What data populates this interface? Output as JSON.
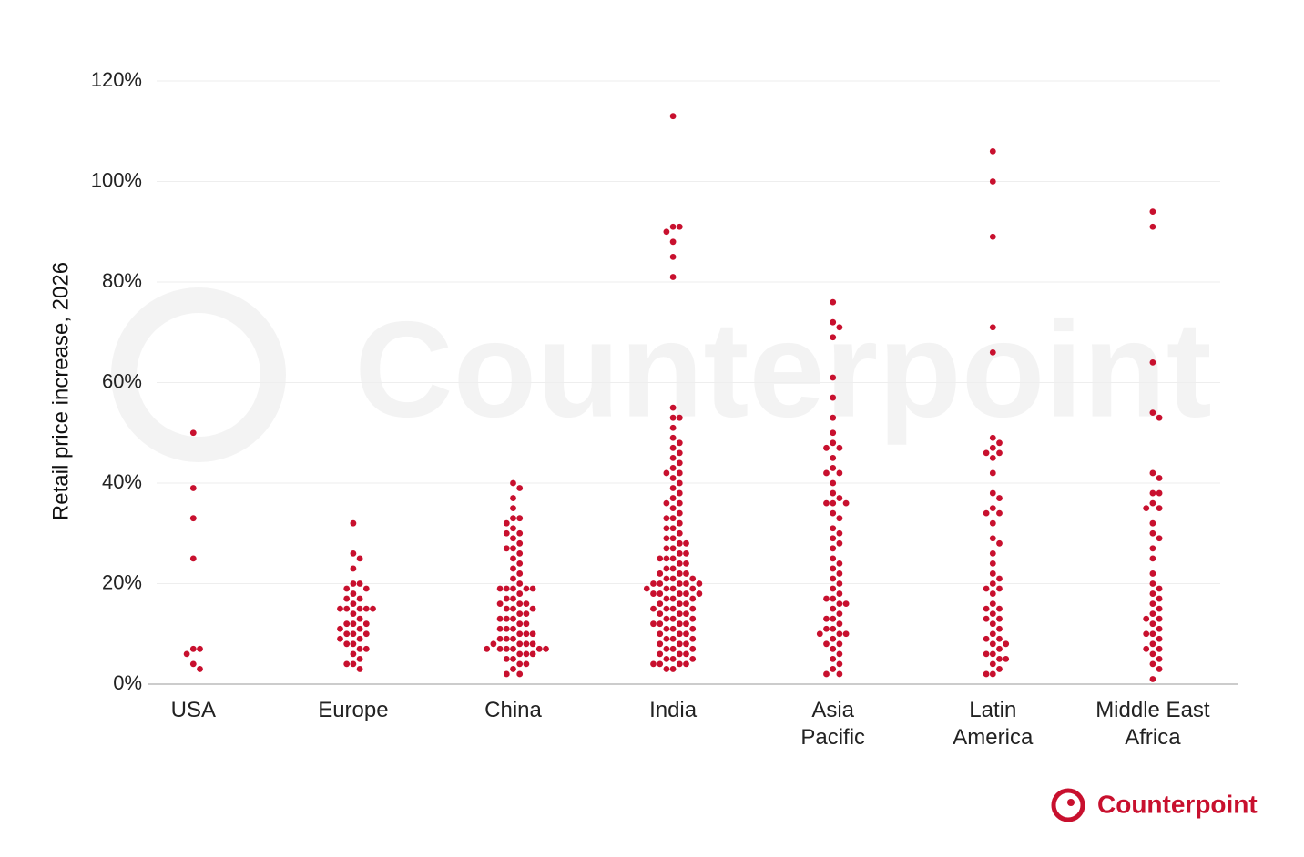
{
  "chart_data": {
    "type": "beeswarm",
    "y_label": "Retail price increase, 2026",
    "watermark": "Counterpoint",
    "logo": "Counterpoint",
    "color": "#c8102e",
    "grid": true,
    "ylim": [
      0,
      120
    ],
    "yticks": [
      {
        "value": 0,
        "label": "0%"
      },
      {
        "value": 20,
        "label": "20%"
      },
      {
        "value": 40,
        "label": "40%"
      },
      {
        "value": 60,
        "label": "60%"
      },
      {
        "value": 80,
        "label": "80%"
      },
      {
        "value": 100,
        "label": "100%"
      },
      {
        "value": 120,
        "label": "120%"
      }
    ],
    "categories": [
      "USA",
      "Europe",
      "China",
      "India",
      "Asia\nPacific",
      "Latin\nAmerica",
      "Middle East\nAfrica"
    ],
    "values": [
      [
        50,
        39,
        33,
        25,
        7,
        7,
        6,
        4,
        3
      ],
      [
        32,
        26,
        25,
        23,
        20,
        20,
        19,
        19,
        18,
        17,
        17,
        16,
        15,
        15,
        15,
        15,
        15,
        14,
        13,
        12,
        12,
        12,
        11,
        11,
        10,
        10,
        10,
        9,
        9,
        8,
        8,
        7,
        7,
        6,
        5,
        4,
        4,
        3
      ],
      [
        40,
        39,
        37,
        35,
        33,
        33,
        32,
        31,
        30,
        30,
        29,
        28,
        27,
        27,
        26,
        25,
        24,
        23,
        22,
        21,
        20,
        19,
        19,
        19,
        19,
        19,
        18,
        17,
        17,
        16,
        16,
        16,
        15,
        15,
        15,
        14,
        14,
        13,
        13,
        13,
        12,
        12,
        11,
        11,
        11,
        10,
        10,
        10,
        9,
        9,
        9,
        8,
        8,
        8,
        8,
        7,
        7,
        7,
        7,
        7,
        7,
        6,
        6,
        6,
        5,
        5,
        4,
        4,
        3,
        2,
        2
      ],
      [
        113,
        91,
        91,
        90,
        88,
        85,
        81,
        55,
        53,
        53,
        51,
        49,
        48,
        47,
        46,
        45,
        44,
        43,
        42,
        42,
        41,
        40,
        39,
        38,
        37,
        36,
        36,
        35,
        34,
        33,
        33,
        32,
        31,
        31,
        30,
        29,
        29,
        28,
        28,
        27,
        27,
        26,
        26,
        25,
        25,
        25,
        24,
        24,
        23,
        23,
        22,
        22,
        22,
        21,
        21,
        21,
        20,
        20,
        20,
        20,
        20,
        19,
        19,
        19,
        19,
        18,
        18,
        18,
        18,
        18,
        17,
        17,
        17,
        16,
        16,
        16,
        15,
        15,
        15,
        15,
        14,
        14,
        14,
        13,
        13,
        13,
        12,
        12,
        12,
        12,
        11,
        11,
        11,
        10,
        10,
        10,
        9,
        9,
        9,
        8,
        8,
        8,
        7,
        7,
        7,
        6,
        6,
        6,
        5,
        5,
        5,
        4,
        4,
        4,
        4,
        3,
        3
      ],
      [
        76,
        72,
        71,
        69,
        61,
        57,
        53,
        50,
        48,
        47,
        47,
        45,
        43,
        42,
        42,
        40,
        38,
        37,
        36,
        36,
        36,
        34,
        33,
        31,
        30,
        29,
        28,
        27,
        25,
        24,
        23,
        22,
        21,
        20,
        19,
        18,
        17,
        17,
        16,
        16,
        15,
        14,
        13,
        13,
        12,
        11,
        11,
        10,
        10,
        10,
        9,
        8,
        8,
        7,
        6,
        5,
        4,
        3,
        2,
        2
      ],
      [
        106,
        100,
        89,
        71,
        66,
        49,
        48,
        47,
        46,
        46,
        45,
        42,
        38,
        37,
        35,
        34,
        34,
        32,
        29,
        28,
        26,
        24,
        22,
        21,
        20,
        19,
        19,
        18,
        16,
        15,
        15,
        14,
        13,
        13,
        12,
        11,
        10,
        9,
        9,
        8,
        8,
        7,
        6,
        6,
        5,
        5,
        4,
        3,
        2,
        2
      ],
      [
        94,
        91,
        64,
        54,
        53,
        42,
        41,
        38,
        38,
        36,
        35,
        35,
        32,
        30,
        29,
        27,
        25,
        22,
        20,
        19,
        18,
        17,
        16,
        15,
        14,
        13,
        13,
        12,
        11,
        10,
        10,
        9,
        8,
        7,
        7,
        6,
        5,
        4,
        3,
        1
      ]
    ]
  }
}
